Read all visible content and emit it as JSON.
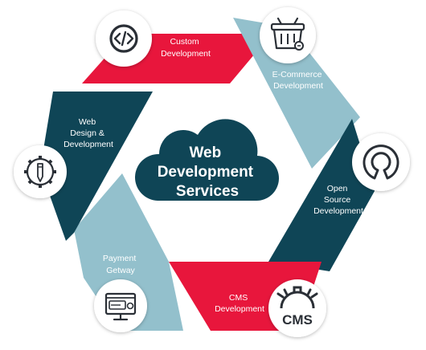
{
  "title": {
    "line1": "Web",
    "line2": "Development",
    "line3": "Services"
  },
  "segments": [
    {
      "lines": [
        "Custom",
        "Development"
      ],
      "color": "#e8163c",
      "icon": "code-icon"
    },
    {
      "lines": [
        "E-Commerce",
        "Development"
      ],
      "color": "#93c0cc",
      "icon": "shopping-basket-icon"
    },
    {
      "lines": [
        "Open",
        "Source",
        "Development"
      ],
      "color": "#0f4556",
      "icon": "open-source-icon"
    },
    {
      "lines": [
        "CMS",
        "Development"
      ],
      "color": "#e8163c",
      "icon": "cms-gear-icon"
    },
    {
      "lines": [
        "Payment",
        "Getway"
      ],
      "color": "#93c0cc",
      "icon": "payment-monitor-icon"
    },
    {
      "lines": [
        "Web",
        "Design &",
        "Development"
      ],
      "color": "#0f4556",
      "icon": "design-gear-icon"
    }
  ],
  "cms_icon_text": "CMS",
  "colors": {
    "red": "#e8163c",
    "light_blue": "#93c0cc",
    "dark_teal": "#0f4556",
    "icon_stroke": "#2a2f36"
  }
}
